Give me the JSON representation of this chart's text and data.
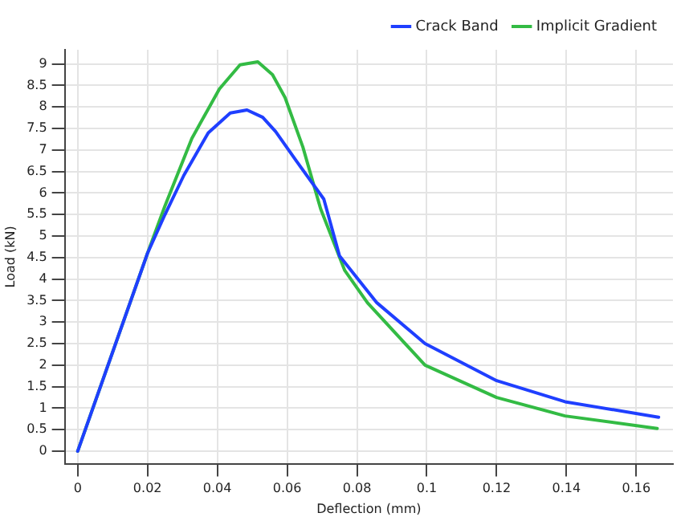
{
  "chart_data": {
    "type": "line",
    "xlabel": "Deflection (mm)",
    "ylabel": "Load (kN)",
    "xlim": [
      -0.0037,
      0.1705
    ],
    "ylim": [
      -0.29,
      9.33
    ],
    "xticks": [
      0,
      0.02,
      0.04,
      0.06,
      0.08,
      0.1,
      0.12,
      0.14,
      0.16
    ],
    "yticks": [
      0,
      0.5,
      1,
      1.5,
      2,
      2.5,
      3,
      3.5,
      4,
      4.5,
      5,
      5.5,
      6,
      6.5,
      7,
      7.5,
      8,
      8.5,
      9
    ],
    "grid": true,
    "legend": "top right",
    "marker": "none",
    "line_style": "solid",
    "series": [
      {
        "name": "Crack Band",
        "color": "#1f3fff",
        "x": [
          0,
          0.01,
          0.02,
          0.025,
          0.0304,
          0.0374,
          0.0437,
          0.0485,
          0.053,
          0.0567,
          0.0627,
          0.0705,
          0.075,
          0.0857,
          0.0995,
          0.12,
          0.1396,
          0.1664
        ],
        "values": [
          0,
          2.3,
          4.6,
          5.5,
          6.41,
          7.4,
          7.86,
          7.93,
          7.76,
          7.43,
          6.74,
          5.86,
          4.54,
          3.45,
          2.5,
          1.64,
          1.15,
          0.79
        ]
      },
      {
        "name": "Implicit Gradient",
        "color": "#33bb44",
        "x": [
          0,
          0.02,
          0.025,
          0.0327,
          0.0406,
          0.0465,
          0.0516,
          0.0558,
          0.0594,
          0.0645,
          0.0696,
          0.0765,
          0.083,
          0.0995,
          0.12,
          0.1396,
          0.166
        ],
        "values": [
          0,
          4.6,
          5.7,
          7.27,
          8.42,
          8.98,
          9.05,
          8.75,
          8.22,
          7.07,
          5.63,
          4.2,
          3.45,
          2.0,
          1.25,
          0.82,
          0.53
        ]
      }
    ]
  }
}
